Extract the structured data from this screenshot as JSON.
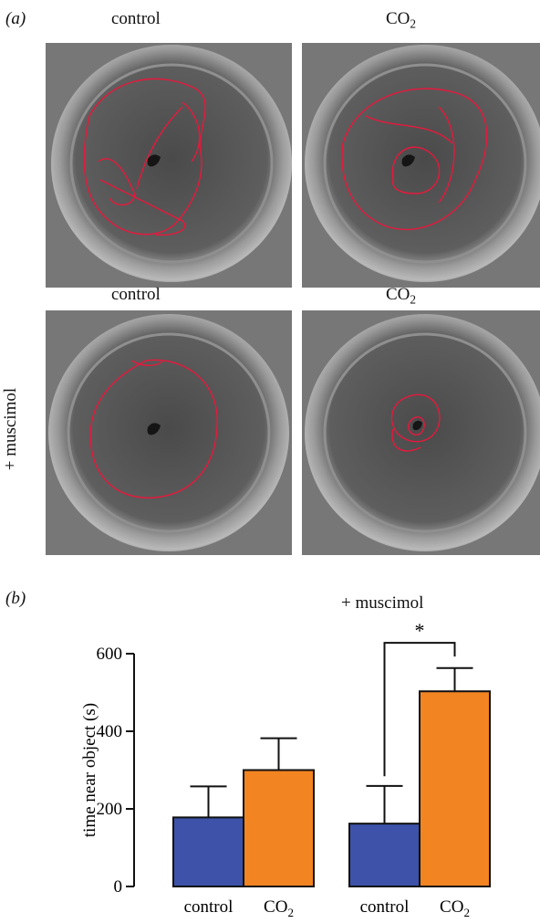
{
  "panel_a": {
    "letter": "(a)",
    "row1": {
      "left_label": "control",
      "right_label": "CO",
      "right_label_sub": "2"
    },
    "row2": {
      "left_label": "control",
      "right_label": "CO",
      "right_label_sub": "2",
      "side_label": "+ muscimol"
    },
    "photos": [
      {
        "name": "control-track",
        "track": "wide loops along the dish wall"
      },
      {
        "name": "co2-track",
        "track": "wide loops along the dish wall"
      },
      {
        "name": "muscimol-control-track",
        "track": "circuit along the dish wall"
      },
      {
        "name": "muscimol-co2-track",
        "track": "small loops close to the central object"
      }
    ],
    "track_color": "#e8183c"
  },
  "panel_b": {
    "letter": "(b)",
    "group_label": "+ muscimol",
    "significance": "*"
  },
  "chart_data": {
    "type": "bar",
    "ylabel": "time near object (s)",
    "ylim": [
      0,
      600
    ],
    "yticks": [
      0,
      200,
      400,
      600
    ],
    "ytick_labels": [
      "0",
      "200",
      "400",
      "600"
    ],
    "groups": [
      "",
      "+ muscimol"
    ],
    "categories": [
      "control",
      "CO",
      "control",
      "CO"
    ],
    "category_subscripts": [
      "",
      "2",
      "",
      "2"
    ],
    "values": [
      178,
      300,
      162,
      503
    ],
    "errors": [
      80,
      82,
      97,
      60
    ],
    "colors": [
      "#3d52a8",
      "#f28422",
      "#3d52a8",
      "#f28422"
    ],
    "annotations": [
      {
        "text": "*",
        "between": [
          2,
          3
        ]
      }
    ]
  }
}
